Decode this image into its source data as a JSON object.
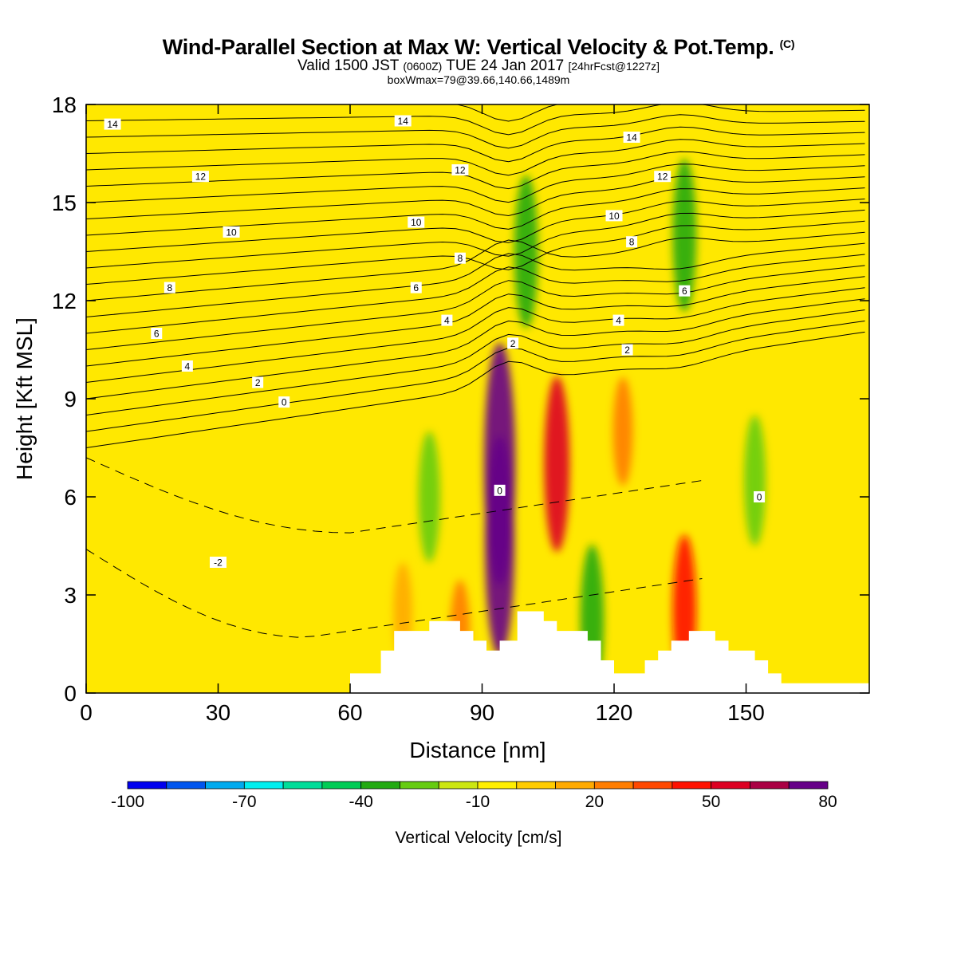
{
  "chart_data": {
    "type": "heatmap",
    "title": "Wind-Parallel Section at Max W: Vertical Velocity & Pot.Temp.",
    "title_mark": "(C)",
    "subtitle_parts": [
      "Valid 1500 JST ",
      "(0600Z)",
      " TUE 24 Jan 2017 ",
      "[24hrFcst@1227z]"
    ],
    "subtitle2": "boxWmax=79@39.66,140.66,1489m",
    "xlabel": "Distance [nm]",
    "ylabel": "Height [Kft MSL]",
    "xlim": [
      0,
      178
    ],
    "ylim": [
      0,
      18
    ],
    "xticks": [
      0,
      30,
      60,
      90,
      120,
      150
    ],
    "yticks": [
      0,
      3,
      6,
      9,
      12,
      15,
      18
    ],
    "colorbar": {
      "label": "Vertical Velocity [cm/s]",
      "ticks": [
        "-100",
        "-70",
        "-40",
        "-10",
        "20",
        "50",
        "80"
      ],
      "tick_values": [
        -100,
        -70,
        -40,
        -10,
        20,
        50,
        80
      ],
      "colors": [
        "#0000ee",
        "#0055ee",
        "#00aaee",
        "#00eeee",
        "#00dd99",
        "#00cc55",
        "#22aa11",
        "#66cc11",
        "#cce610",
        "#ffee00",
        "#ffcc00",
        "#ffaa00",
        "#ff7d00",
        "#ff4800",
        "#ff1100",
        "#dd0022",
        "#aa0044",
        "#660088"
      ]
    },
    "velocity_cells": [
      {
        "x": 94,
        "z": 7.0,
        "w": 80
      },
      {
        "x": 94,
        "z": 4.5,
        "w": 70
      },
      {
        "x": 107,
        "z": 7.0,
        "w": 50
      },
      {
        "x": 122,
        "z": 8.0,
        "w": 20
      },
      {
        "x": 85,
        "z": 1.8,
        "w": 20
      },
      {
        "x": 72,
        "z": 2.5,
        "w": 15
      },
      {
        "x": 136,
        "z": 2.5,
        "w": 40
      },
      {
        "x": 100,
        "z": 13.5,
        "w": -40
      },
      {
        "x": 136,
        "z": 14.0,
        "w": -40
      },
      {
        "x": 115,
        "z": 2.2,
        "w": -40
      },
      {
        "x": 152,
        "z": 6.5,
        "w": -30
      },
      {
        "x": 78,
        "z": 6.0,
        "w": -30
      }
    ],
    "theta_contour_labels": [
      {
        "x": 6,
        "z": 17.4,
        "label": "14"
      },
      {
        "x": 72,
        "z": 17.5,
        "label": "14"
      },
      {
        "x": 124,
        "z": 17.0,
        "label": "14"
      },
      {
        "x": 26,
        "z": 15.8,
        "label": "12"
      },
      {
        "x": 85,
        "z": 16.0,
        "label": "12"
      },
      {
        "x": 131,
        "z": 15.8,
        "label": "12"
      },
      {
        "x": 33,
        "z": 14.1,
        "label": "10"
      },
      {
        "x": 75,
        "z": 14.4,
        "label": "10"
      },
      {
        "x": 120,
        "z": 14.6,
        "label": "10"
      },
      {
        "x": 85,
        "z": 13.3,
        "label": "8"
      },
      {
        "x": 124,
        "z": 13.8,
        "label": "8"
      },
      {
        "x": 19,
        "z": 12.4,
        "label": "8"
      },
      {
        "x": 75,
        "z": 12.4,
        "label": "6"
      },
      {
        "x": 136,
        "z": 12.3,
        "label": "6"
      },
      {
        "x": 16,
        "z": 11.0,
        "label": "6"
      },
      {
        "x": 82,
        "z": 11.4,
        "label": "4"
      },
      {
        "x": 121,
        "z": 11.4,
        "label": "4"
      },
      {
        "x": 23,
        "z": 10.0,
        "label": "4"
      },
      {
        "x": 97,
        "z": 10.7,
        "label": "2"
      },
      {
        "x": 123,
        "z": 10.5,
        "label": "2"
      },
      {
        "x": 39,
        "z": 9.5,
        "label": "2"
      },
      {
        "x": 45,
        "z": 8.9,
        "label": "0"
      },
      {
        "x": 94,
        "z": 6.2,
        "label": "0"
      },
      {
        "x": 153,
        "z": 6.0,
        "label": "0"
      },
      {
        "x": 30,
        "z": 4.0,
        "label": "-2"
      }
    ],
    "terrain": [
      {
        "x": 0,
        "z": 0
      },
      {
        "x": 60,
        "z": 0
      },
      {
        "x": 60,
        "z": 0.6
      },
      {
        "x": 67,
        "z": 0.6
      },
      {
        "x": 67,
        "z": 1.3
      },
      {
        "x": 70,
        "z": 1.3
      },
      {
        "x": 70,
        "z": 1.9
      },
      {
        "x": 78,
        "z": 1.9
      },
      {
        "x": 78,
        "z": 2.2
      },
      {
        "x": 85,
        "z": 2.2
      },
      {
        "x": 85,
        "z": 1.9
      },
      {
        "x": 88,
        "z": 1.9
      },
      {
        "x": 88,
        "z": 1.6
      },
      {
        "x": 91,
        "z": 1.6
      },
      {
        "x": 91,
        "z": 1.3
      },
      {
        "x": 94,
        "z": 1.3
      },
      {
        "x": 94,
        "z": 1.6
      },
      {
        "x": 98,
        "z": 1.6
      },
      {
        "x": 98,
        "z": 2.5
      },
      {
        "x": 104,
        "z": 2.5
      },
      {
        "x": 104,
        "z": 2.2
      },
      {
        "x": 107,
        "z": 2.2
      },
      {
        "x": 107,
        "z": 1.9
      },
      {
        "x": 114,
        "z": 1.9
      },
      {
        "x": 114,
        "z": 1.6
      },
      {
        "x": 117,
        "z": 1.6
      },
      {
        "x": 117,
        "z": 1.0
      },
      {
        "x": 120,
        "z": 1.0
      },
      {
        "x": 120,
        "z": 0.6
      },
      {
        "x": 127,
        "z": 0.6
      },
      {
        "x": 127,
        "z": 1.0
      },
      {
        "x": 130,
        "z": 1.0
      },
      {
        "x": 130,
        "z": 1.3
      },
      {
        "x": 133,
        "z": 1.3
      },
      {
        "x": 133,
        "z": 1.6
      },
      {
        "x": 137,
        "z": 1.6
      },
      {
        "x": 137,
        "z": 1.9
      },
      {
        "x": 143,
        "z": 1.9
      },
      {
        "x": 143,
        "z": 1.6
      },
      {
        "x": 146,
        "z": 1.6
      },
      {
        "x": 146,
        "z": 1.3
      },
      {
        "x": 152,
        "z": 1.3
      },
      {
        "x": 152,
        "z": 1.0
      },
      {
        "x": 155,
        "z": 1.0
      },
      {
        "x": 155,
        "z": 0.6
      },
      {
        "x": 158,
        "z": 0.6
      },
      {
        "x": 158,
        "z": 0.3
      },
      {
        "x": 178,
        "z": 0.3
      },
      {
        "x": 178,
        "z": 0
      }
    ]
  }
}
